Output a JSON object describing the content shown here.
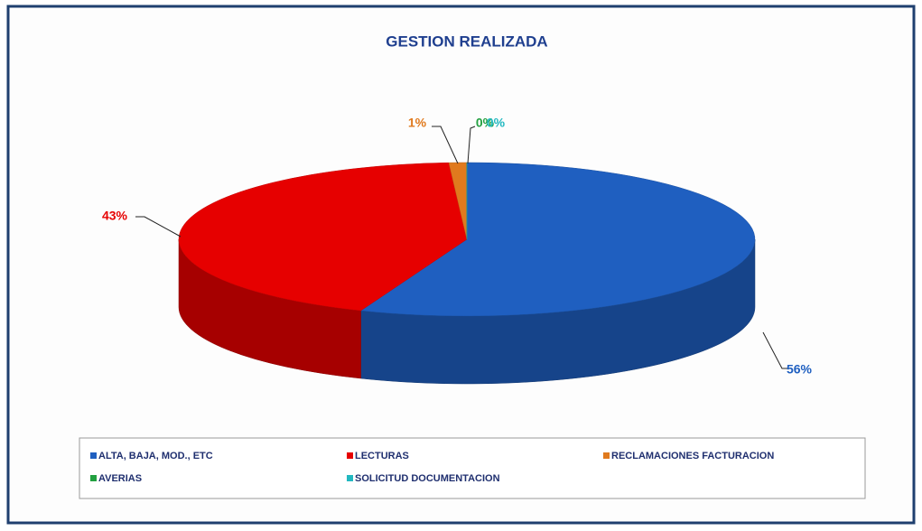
{
  "chart_data": {
    "type": "pie3d",
    "title": "GESTION REALIZADA",
    "categories": [
      "ALTA, BAJA, MOD., ETC",
      "LECTURAS",
      "RECLAMACIONES FACTURACION",
      "AVERIAS",
      "SOLICITUD DOCUMENTACION"
    ],
    "values": [
      56,
      43,
      1,
      0,
      0
    ],
    "value_labels": [
      "56%",
      "43%",
      "1%",
      "0%",
      "0%"
    ],
    "colors": [
      "#1f5fc0",
      "#e60000",
      "#e07a1e",
      "#22a040",
      "#22b8c0"
    ],
    "legend": "bottom"
  }
}
